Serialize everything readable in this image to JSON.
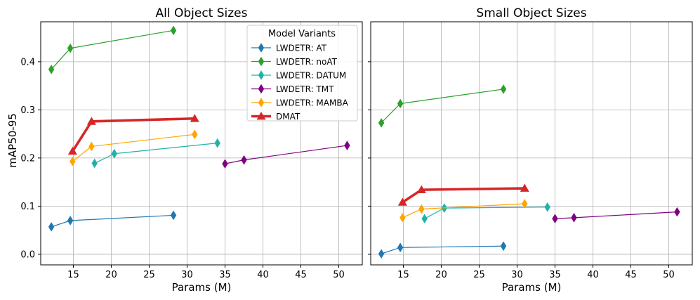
{
  "chart_data": {
    "type": "line",
    "ylabel": "mAP50-95",
    "ylim": [
      -0.022,
      0.483
    ],
    "legend": {
      "title": "Model Variants",
      "location": "upper-right",
      "panel": "all_object_sizes"
    },
    "panels": [
      {
        "id": "all_object_sizes",
        "title": "All Object Sizes",
        "xlabel": "Params (M)",
        "xlim": [
          10.7,
          53.1
        ],
        "xticks": [
          "15",
          "20",
          "25",
          "30",
          "35",
          "40",
          "45",
          "50"
        ],
        "yticks": [
          "0.0",
          "0.1",
          "0.2",
          "0.3",
          "0.4"
        ],
        "grid": true,
        "series": [
          {
            "name": "LWDETR: AT",
            "color": "#1f77b4",
            "marker": "diamond",
            "x": [
              12.1,
              14.6,
              28.2
            ],
            "y": [
              0.057,
              0.07,
              0.081
            ]
          },
          {
            "name": "LWDETR: noAT",
            "color": "#2ca02c",
            "marker": "diamond",
            "x": [
              12.1,
              14.6,
              28.2
            ],
            "y": [
              0.384,
              0.428,
              0.465
            ]
          },
          {
            "name": "LWDETR: DATUM",
            "color": "#20b2aa",
            "marker": "diamond",
            "x": [
              17.8,
              20.4,
              34.0
            ],
            "y": [
              0.189,
              0.209,
              0.231
            ]
          },
          {
            "name": "LWDETR: TMT",
            "color": "#800080",
            "marker": "diamond",
            "x": [
              35.0,
              37.5,
              51.1
            ],
            "y": [
              0.188,
              0.196,
              0.226
            ]
          },
          {
            "name": "LWDETR: MAMBA",
            "color": "#ffa500",
            "marker": "diamond",
            "x": [
              14.9,
              17.4,
              31.0
            ],
            "y": [
              0.193,
              0.224,
              0.249
            ]
          },
          {
            "name": "DMAT",
            "color": "#d62728",
            "marker": "triangle",
            "bold": true,
            "x": [
              14.9,
              17.4,
              31.0
            ],
            "y": [
              0.214,
              0.276,
              0.282
            ]
          }
        ]
      },
      {
        "id": "small_object_sizes",
        "title": "Small Object Sizes",
        "xlabel": "Params (M)",
        "xlim": [
          10.7,
          53.1
        ],
        "xticks": [
          "15",
          "20",
          "25",
          "30",
          "35",
          "40",
          "45",
          "50"
        ],
        "yticks": [],
        "grid": true,
        "series": [
          {
            "name": "LWDETR: AT",
            "color": "#1f77b4",
            "marker": "diamond",
            "x": [
              12.1,
              14.6,
              28.2
            ],
            "y": [
              0.001,
              0.014,
              0.017
            ]
          },
          {
            "name": "LWDETR: noAT",
            "color": "#2ca02c",
            "marker": "diamond",
            "x": [
              12.1,
              14.6,
              28.2
            ],
            "y": [
              0.273,
              0.313,
              0.343
            ]
          },
          {
            "name": "LWDETR: DATUM",
            "color": "#20b2aa",
            "marker": "diamond",
            "x": [
              17.8,
              20.4,
              34.0
            ],
            "y": [
              0.074,
              0.096,
              0.098
            ]
          },
          {
            "name": "LWDETR: TMT",
            "color": "#800080",
            "marker": "diamond",
            "x": [
              35.0,
              37.5,
              51.1
            ],
            "y": [
              0.074,
              0.076,
              0.088
            ]
          },
          {
            "name": "LWDETR: MAMBA",
            "color": "#ffa500",
            "marker": "diamond",
            "x": [
              14.9,
              17.4,
              31.0
            ],
            "y": [
              0.076,
              0.094,
              0.105
            ]
          },
          {
            "name": "DMAT",
            "color": "#d62728",
            "marker": "triangle",
            "bold": true,
            "x": [
              14.9,
              17.4,
              31.0
            ],
            "y": [
              0.108,
              0.134,
              0.137
            ]
          }
        ]
      }
    ]
  }
}
